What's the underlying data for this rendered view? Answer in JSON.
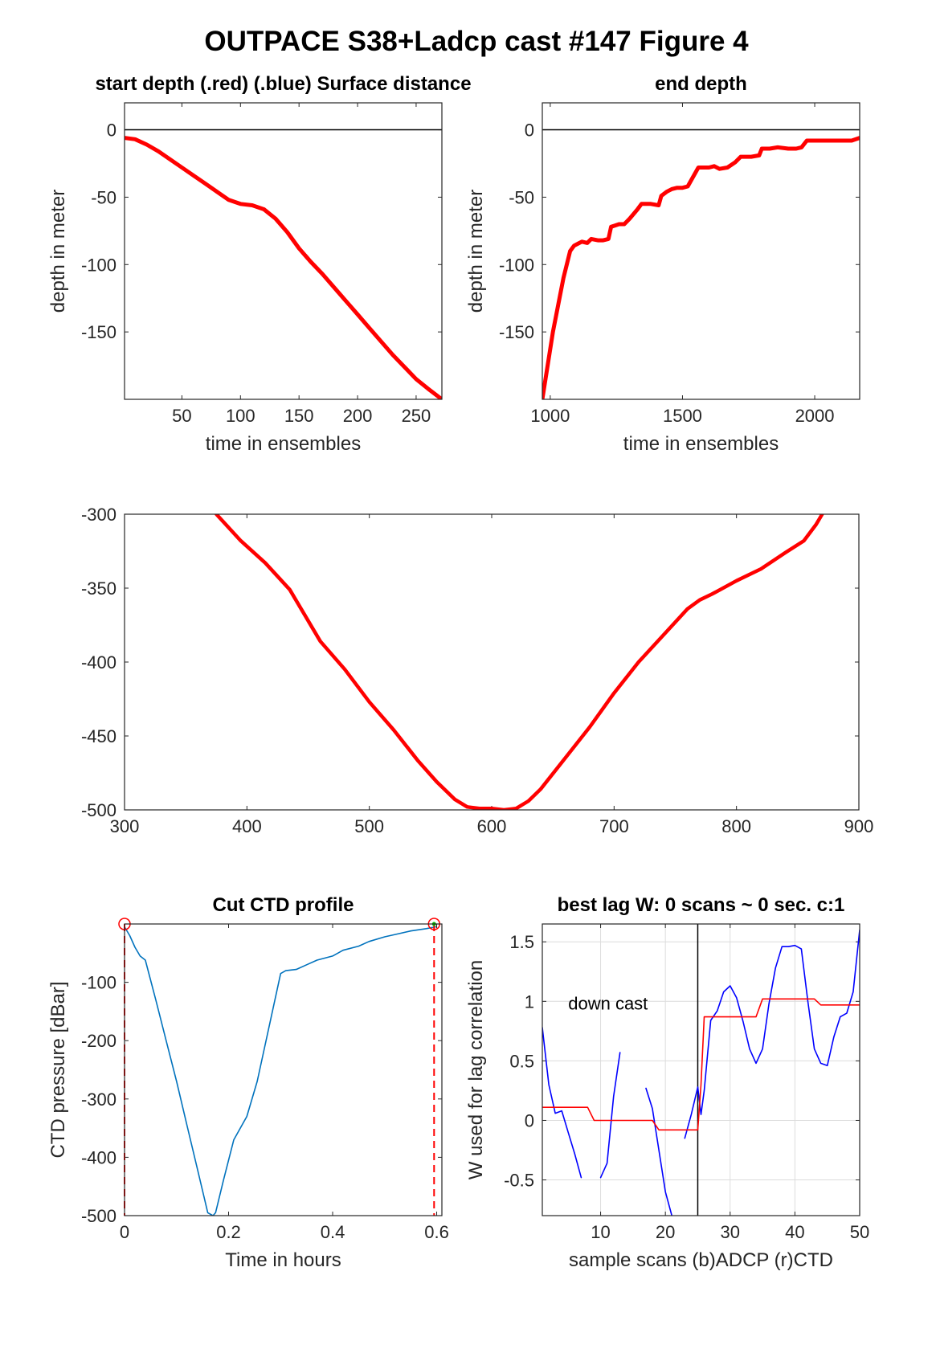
{
  "figure": {
    "title": "OUTPACE S38+Ladcp cast #147    Figure 4"
  },
  "chart_data": [
    {
      "id": "start_depth",
      "type": "line",
      "title": "start depth (.red) (.blue) Surface distance",
      "xlabel": "time in ensembles",
      "ylabel": "depth in meter",
      "xlim": [
        1,
        272
      ],
      "ylim": [
        -200,
        20
      ],
      "xticks": [
        50,
        100,
        150,
        200,
        250
      ],
      "yticks": [
        0,
        -50,
        -100,
        -150
      ],
      "grid": false,
      "reference_line_y": 0,
      "series": [
        {
          "color": "#ff0000",
          "x": [
            1,
            10,
            20,
            30,
            40,
            50,
            60,
            70,
            80,
            90,
            100,
            110,
            120,
            130,
            140,
            150,
            160,
            170,
            180,
            190,
            200,
            210,
            220,
            230,
            240,
            250,
            260,
            272
          ],
          "y": [
            -6,
            -7,
            -11,
            -16,
            -22,
            -28,
            -34,
            -40,
            -46,
            -52,
            -55,
            -56,
            -59,
            -66,
            -76,
            -88,
            -98,
            -107,
            -117,
            -127,
            -137,
            -147,
            -157,
            -167,
            -176,
            -185,
            -192,
            -200
          ]
        }
      ]
    },
    {
      "id": "end_depth",
      "type": "line",
      "title": "end depth",
      "xlabel": "time in ensembles",
      "ylabel": "depth in meter",
      "xlim": [
        970,
        2170
      ],
      "ylim": [
        -200,
        20
      ],
      "xticks": [
        1000,
        1500,
        2000
      ],
      "yticks": [
        0,
        -50,
        -100,
        -150
      ],
      "grid": false,
      "reference_line_y": 0,
      "series": [
        {
          "color": "#ff0000",
          "x": [
            970,
            1010,
            1050,
            1075,
            1090,
            1110,
            1120,
            1140,
            1155,
            1180,
            1200,
            1220,
            1230,
            1260,
            1280,
            1300,
            1330,
            1345,
            1380,
            1410,
            1420,
            1440,
            1460,
            1480,
            1500,
            1520,
            1560,
            1580,
            1600,
            1620,
            1640,
            1670,
            1700,
            1720,
            1740,
            1760,
            1790,
            1800,
            1830,
            1860,
            1900,
            1930,
            1950,
            1970,
            2000,
            2050,
            2100,
            2140,
            2170
          ],
          "y": [
            -200,
            -150,
            -110,
            -90,
            -86,
            -84,
            -83,
            -84,
            -81,
            -82,
            -82,
            -81,
            -72,
            -70,
            -70,
            -66,
            -59,
            -55,
            -55,
            -56,
            -49,
            -46,
            -44,
            -43,
            -43,
            -42,
            -28,
            -28,
            -28,
            -27,
            -29,
            -28,
            -24,
            -20,
            -20,
            -20,
            -19,
            -14,
            -14,
            -13,
            -14,
            -14,
            -13,
            -8,
            -8,
            -8,
            -8,
            -8,
            -6
          ]
        }
      ]
    },
    {
      "id": "bottom_depth",
      "type": "line",
      "title": "",
      "xlabel": "",
      "ylabel": "",
      "xlim": [
        300,
        900
      ],
      "ylim": [
        -500,
        -300
      ],
      "xticks": [
        300,
        400,
        500,
        600,
        700,
        800,
        900
      ],
      "yticks": [
        -300,
        -350,
        -400,
        -450,
        -500
      ],
      "grid": false,
      "series": [
        {
          "color": "#ff0000",
          "x": [
            375,
            395,
            415,
            435,
            460,
            480,
            500,
            520,
            540,
            555,
            570,
            580,
            590,
            600,
            610,
            620,
            630,
            640,
            660,
            680,
            700,
            720,
            740,
            760,
            770,
            780,
            800,
            820,
            840,
            855,
            865,
            870
          ],
          "y": [
            -300,
            -318,
            -333,
            -351,
            -386,
            -405,
            -427,
            -446,
            -467,
            -481,
            -493,
            -498,
            -499,
            -499,
            -500,
            -499,
            -494,
            -486,
            -465,
            -444,
            -421,
            -400,
            -382,
            -364,
            -358,
            -354,
            -345,
            -337,
            -326,
            -318,
            -307,
            -300
          ]
        }
      ]
    },
    {
      "id": "cut_ctd",
      "type": "line",
      "title": "Cut CTD profile",
      "xlabel": "Time in hours",
      "ylabel": "CTD pressure [dBar]",
      "xlim": [
        0,
        0.61
      ],
      "ylim": [
        -500,
        0
      ],
      "xticks": [
        0,
        0.2,
        0.4,
        0.6
      ],
      "xticklabels": [
        "0",
        "0.2",
        "0.4",
        "0.6"
      ],
      "yticks": [
        -100,
        -200,
        -300,
        -400,
        -500
      ],
      "grid": false,
      "series": [
        {
          "color": "#0072bd",
          "x": [
            0,
            0.01,
            0.02,
            0.03,
            0.04,
            0.06,
            0.08,
            0.1,
            0.12,
            0.14,
            0.16,
            0.17,
            0.175,
            0.19,
            0.21,
            0.235,
            0.255,
            0.3,
            0.31,
            0.33,
            0.35,
            0.37,
            0.4,
            0.42,
            0.45,
            0.47,
            0.5,
            0.52,
            0.55,
            0.58,
            0.598
          ],
          "y": [
            -5,
            -20,
            -40,
            -55,
            -62,
            -130,
            -200,
            -270,
            -345,
            -420,
            -495,
            -500,
            -495,
            -440,
            -370,
            -330,
            -270,
            -85,
            -80,
            -78,
            -70,
            -62,
            -55,
            -45,
            -38,
            -30,
            -22,
            -18,
            -12,
            -8,
            -5
          ]
        }
      ],
      "cut_markers": {
        "color": "#ff0000",
        "x": [
          0,
          0.595
        ],
        "y": 0
      }
    },
    {
      "id": "best_lag",
      "type": "line",
      "title": "best lag W: 0 scans ~ 0 sec.  c:1",
      "xlabel": "sample scans (b)ADCP (r)CTD",
      "ylabel": "W used for lag correlation",
      "xlim": [
        1,
        50
      ],
      "ylim": [
        -0.8,
        1.65
      ],
      "xticks": [
        10,
        20,
        30,
        40,
        50
      ],
      "yticks": [
        1.5,
        1,
        0.5,
        0,
        -0.5
      ],
      "yticklabels": [
        "1.5",
        "1",
        "0.5",
        "0",
        "-0.5"
      ],
      "grid": true,
      "vertical_line_x": 25,
      "annotation": "down cast",
      "series": [
        {
          "color": "#0000ff",
          "segments": [
            {
              "x": [
                1,
                2,
                3,
                4,
                5,
                6,
                7
              ],
              "y": [
                0.78,
                0.3,
                0.06,
                0.08,
                -0.1,
                -0.28,
                -0.48
              ]
            },
            {
              "x": [
                10,
                11,
                12,
                13
              ],
              "y": [
                -0.48,
                -0.36,
                0.2,
                0.57
              ]
            },
            {
              "x": [
                17,
                18,
                19,
                20,
                21
              ],
              "y": [
                0.27,
                0.1,
                -0.25,
                -0.6,
                -0.8
              ]
            },
            {
              "x": [
                23,
                24,
                25,
                25.5,
                26,
                27,
                28,
                29,
                30,
                31,
                32,
                33,
                34,
                35,
                36,
                37,
                38,
                39,
                40,
                41,
                42,
                43,
                44,
                45,
                46,
                47,
                48,
                49,
                50
              ],
              "y": [
                -0.15,
                0.05,
                0.28,
                0.05,
                0.25,
                0.84,
                0.92,
                1.08,
                1.13,
                1.03,
                0.83,
                0.6,
                0.48,
                0.6,
                0.98,
                1.28,
                1.46,
                1.46,
                1.47,
                1.44,
                1.0,
                0.6,
                0.48,
                0.46,
                0.7,
                0.87,
                0.9,
                1.08,
                1.6
              ]
            }
          ]
        },
        {
          "color": "#ff0000",
          "x": [
            1,
            8,
            9,
            18,
            19,
            25,
            25.5,
            26,
            34,
            35,
            43,
            44,
            50
          ],
          "y": [
            0.11,
            0.11,
            0.0,
            0.0,
            -0.08,
            -0.08,
            0.3,
            0.87,
            0.87,
            1.02,
            1.02,
            0.97,
            0.97
          ]
        }
      ]
    }
  ]
}
